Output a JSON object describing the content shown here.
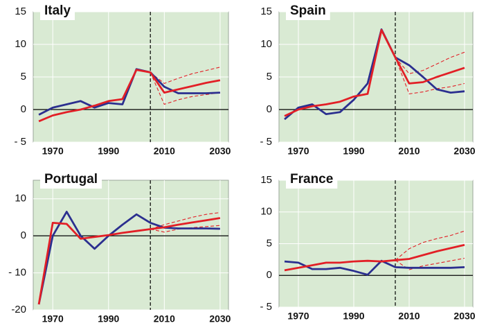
{
  "chart_data": [
    {
      "type": "line",
      "title": "Italy",
      "x": [
        1965,
        1970,
        1975,
        1980,
        1985,
        1990,
        1995,
        2000,
        2005,
        2010,
        2015,
        2020,
        2025,
        2030
      ],
      "series": [
        {
          "color": "#e21f26",
          "style": "dashed",
          "values": [
            null,
            null,
            null,
            null,
            null,
            null,
            null,
            null,
            5.7,
            4.0,
            4.8,
            5.5,
            6.0,
            6.5
          ]
        },
        {
          "color": "#e21f26",
          "style": "dashed",
          "values": [
            null,
            null,
            null,
            null,
            null,
            null,
            null,
            null,
            5.7,
            0.8,
            1.5,
            2.0,
            2.3,
            2.6
          ]
        },
        {
          "color": "#2b2f8f",
          "style": "solid",
          "values": [
            -0.8,
            0.3,
            0.8,
            1.3,
            0.3,
            1.0,
            0.8,
            6.2,
            5.7,
            3.5,
            2.5,
            2.5,
            2.5,
            2.6
          ]
        },
        {
          "color": "#e21f26",
          "style": "solid",
          "values": [
            -1.8,
            -0.9,
            -0.4,
            0,
            0.6,
            1.3,
            1.6,
            6.1,
            5.7,
            2.6,
            3.1,
            3.6,
            4.1,
            4.5
          ]
        }
      ],
      "xlim": [
        1963,
        2033
      ],
      "xticks": [
        1970,
        1990,
        2010,
        2030
      ],
      "ylim": [
        -5,
        15
      ],
      "yticks": [
        {
          "value": -5,
          "label": "- 5"
        },
        0,
        5,
        10,
        15
      ],
      "marker_x": 2005,
      "grid": true
    },
    {
      "type": "line",
      "title": "Spain",
      "x": [
        1965,
        1970,
        1975,
        1980,
        1985,
        1990,
        1995,
        2000,
        2005,
        2010,
        2015,
        2020,
        2025,
        2030
      ],
      "series": [
        {
          "color": "#e21f26",
          "style": "dashed",
          "values": [
            null,
            null,
            null,
            null,
            null,
            null,
            null,
            null,
            8,
            5.5,
            6,
            7,
            8,
            8.8
          ]
        },
        {
          "color": "#e21f26",
          "style": "dashed",
          "values": [
            null,
            null,
            null,
            null,
            null,
            null,
            null,
            null,
            8,
            2.4,
            2.7,
            3.2,
            3.5,
            4
          ]
        },
        {
          "color": "#2b2f8f",
          "style": "solid",
          "values": [
            -1.5,
            0.3,
            0.8,
            -0.7,
            -0.4,
            1.5,
            4,
            12.3,
            8,
            6.8,
            5,
            3.1,
            2.6,
            2.8
          ]
        },
        {
          "color": "#e21f26",
          "style": "solid",
          "values": [
            -1,
            0,
            0.5,
            0.8,
            1.2,
            2,
            2.4,
            12.2,
            8,
            4,
            4.2,
            5,
            5.7,
            6.4
          ]
        }
      ],
      "xlim": [
        1963,
        2033
      ],
      "xticks": [
        1970,
        1990,
        2010,
        2030
      ],
      "ylim": [
        -5,
        15
      ],
      "yticks": [
        {
          "value": -5,
          "label": "- 5"
        },
        0,
        5,
        10,
        15
      ],
      "marker_x": 2005,
      "grid": true
    },
    {
      "type": "line",
      "title": "Portugal",
      "x": [
        1965,
        1970,
        1975,
        1980,
        1985,
        1990,
        1995,
        2000,
        2005,
        2010,
        2015,
        2020,
        2025,
        2030
      ],
      "series": [
        {
          "color": "#e21f26",
          "style": "dashed",
          "values": [
            null,
            null,
            null,
            null,
            null,
            null,
            null,
            null,
            1.8,
            3,
            4,
            5,
            5.8,
            6.3
          ]
        },
        {
          "color": "#e21f26",
          "style": "dashed",
          "values": [
            null,
            null,
            null,
            null,
            null,
            null,
            null,
            null,
            1.8,
            1,
            1.8,
            2.2,
            2.5,
            2.8
          ]
        },
        {
          "color": "#2b2f8f",
          "style": "solid",
          "values": [
            -18.5,
            0,
            6.5,
            0,
            -3.5,
            0,
            3,
            5.8,
            3.5,
            2.2,
            2,
            2,
            2,
            1.9
          ]
        },
        {
          "color": "#e21f26",
          "style": "solid",
          "values": [
            -18.5,
            3.5,
            3.2,
            -0.8,
            -0.3,
            0.2,
            0.8,
            1.3,
            1.8,
            2.3,
            3,
            3.6,
            4.2,
            4.8
          ]
        }
      ],
      "xlim": [
        1963,
        2033
      ],
      "xticks": [
        1970,
        1990,
        2010,
        2030
      ],
      "ylim": [
        -20,
        15
      ],
      "yticks": [
        -20,
        {
          "value": -10,
          "label": "- 10"
        },
        0,
        10
      ],
      "marker_x": 2005,
      "grid": true
    },
    {
      "type": "line",
      "title": "France",
      "x": [
        1965,
        1970,
        1975,
        1980,
        1985,
        1990,
        1995,
        2000,
        2005,
        2010,
        2015,
        2020,
        2025,
        2030
      ],
      "series": [
        {
          "color": "#e21f26",
          "style": "dashed",
          "values": [
            null,
            null,
            null,
            null,
            null,
            null,
            null,
            null,
            2.4,
            4.2,
            5.2,
            5.8,
            6.3,
            7
          ]
        },
        {
          "color": "#e21f26",
          "style": "dashed",
          "values": [
            null,
            null,
            null,
            null,
            null,
            null,
            null,
            null,
            2.4,
            0.9,
            1.5,
            1.9,
            2.3,
            2.7
          ]
        },
        {
          "color": "#2b2f8f",
          "style": "solid",
          "values": [
            2.2,
            2,
            1,
            1,
            1.2,
            0.7,
            0.1,
            2.3,
            1.3,
            1.2,
            1.2,
            1.2,
            1.2,
            1.3
          ]
        },
        {
          "color": "#e21f26",
          "style": "solid",
          "values": [
            0.8,
            1.2,
            1.6,
            2,
            2,
            2.2,
            2.3,
            2.2,
            2.4,
            2.6,
            3.2,
            3.8,
            4.3,
            4.8
          ]
        }
      ],
      "xlim": [
        1963,
        2033
      ],
      "xticks": [
        1970,
        1990,
        2010,
        2030
      ],
      "ylim": [
        -5,
        15
      ],
      "yticks": [
        {
          "value": -5,
          "label": "- 5"
        },
        0,
        5,
        10,
        15
      ],
      "marker_x": 2005,
      "grid": true
    }
  ]
}
